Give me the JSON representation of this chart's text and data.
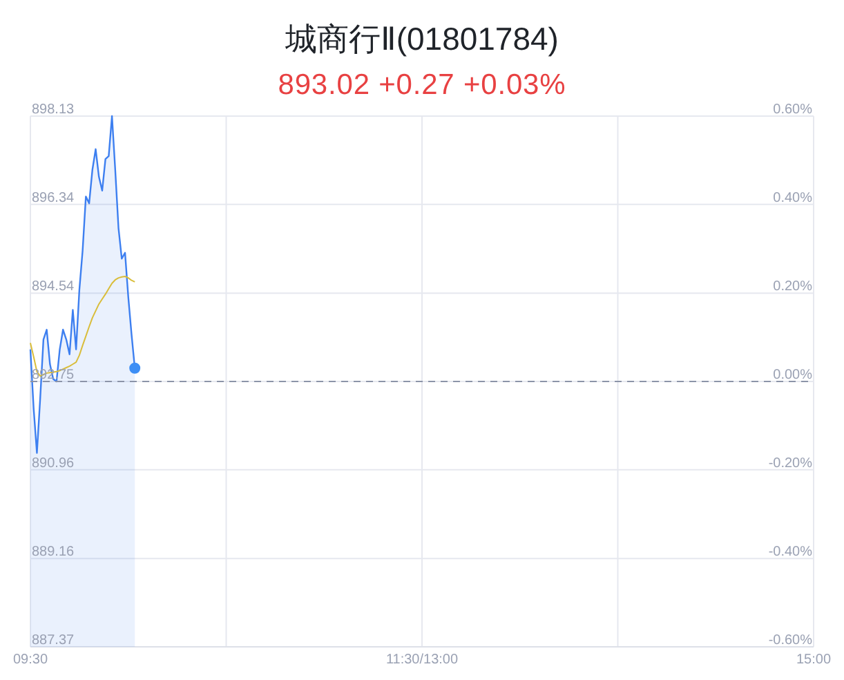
{
  "chart_data": {
    "type": "area",
    "title": "城商行Ⅱ(01801784)",
    "subtitle": "893.02 +0.27 +0.03%",
    "categories": [
      "09:30",
      null,
      null,
      null,
      null,
      null,
      null,
      null,
      null,
      null,
      null,
      null,
      null,
      null,
      null,
      null,
      null,
      null,
      null,
      null,
      null,
      null,
      null,
      null,
      null,
      null,
      null,
      null,
      null,
      null,
      null,
      null,
      null,
      null,
      null,
      null,
      null,
      null,
      null,
      null,
      null,
      null,
      null,
      null,
      null,
      null,
      null,
      null,
      null,
      null,
      null,
      null,
      null,
      null,
      null,
      null,
      null,
      null,
      null,
      null,
      null,
      null,
      null,
      null,
      null,
      null,
      null,
      null,
      null,
      null,
      null,
      null,
      null,
      null,
      null,
      null,
      null,
      null,
      null,
      null,
      null,
      null,
      null,
      null,
      null,
      null,
      null,
      null,
      null,
      null,
      null,
      null,
      null,
      null,
      null,
      null,
      null,
      null,
      null,
      null,
      null,
      null,
      null,
      null,
      null,
      null,
      null,
      null,
      null,
      null,
      null,
      null,
      null,
      null,
      null,
      null,
      null,
      null,
      null,
      null,
      "11:30/13:00",
      null,
      null,
      null,
      null,
      null,
      null,
      null,
      null,
      null,
      null,
      null,
      null,
      null,
      null,
      null,
      null,
      null,
      null,
      null,
      null,
      null,
      null,
      null,
      null,
      null,
      null,
      null,
      null,
      null,
      null,
      null,
      null,
      null,
      null,
      null,
      null,
      null,
      null,
      null,
      null,
      null,
      null,
      null,
      null,
      null,
      null,
      null,
      null,
      null,
      null,
      null,
      null,
      null,
      null,
      null,
      null,
      null,
      null,
      null,
      null,
      null,
      null,
      null,
      null,
      null,
      null,
      null,
      null,
      null,
      null,
      null,
      null,
      null,
      null,
      null,
      null,
      null,
      null,
      null,
      null,
      null,
      null,
      null,
      null,
      null,
      null,
      null,
      null,
      null,
      null,
      null,
      null,
      null,
      null,
      null,
      null,
      null,
      null,
      null,
      null,
      null,
      null,
      null,
      null,
      null,
      null,
      null,
      null,
      null,
      null,
      null,
      null,
      null,
      null,
      null,
      null,
      null,
      null,
      null,
      "15:00"
    ],
    "series": [
      {
        "color": "#3d7ff0",
        "values": [
          893.4,
          892.2,
          891.3,
          892.4,
          893.6,
          893.8,
          893.1,
          892.8,
          892.75,
          893.4,
          893.8,
          893.6,
          893.3,
          894.2,
          893.4,
          894.6,
          895.4,
          896.5,
          896.36,
          897.04,
          897.46,
          896.9,
          896.62,
          897.26,
          897.32,
          898.13,
          897.04,
          895.86,
          895.24,
          895.36,
          894.46,
          893.7,
          893.02,
          null,
          null,
          null,
          null,
          null,
          null,
          null,
          null,
          null,
          null,
          null,
          null,
          null,
          null,
          null,
          null,
          null,
          null,
          null,
          null,
          null,
          null,
          null,
          null,
          null,
          null,
          null,
          null,
          null,
          null,
          null,
          null,
          null,
          null,
          null,
          null,
          null,
          null,
          null,
          null,
          null,
          null,
          null,
          null,
          null,
          null,
          null,
          null,
          null,
          null,
          null,
          null,
          null,
          null,
          null,
          null,
          null,
          null,
          null,
          null,
          null,
          null,
          null,
          null,
          null,
          null,
          null,
          null,
          null,
          null,
          null,
          null,
          null,
          null,
          null,
          null,
          null,
          null,
          null,
          null,
          null,
          null,
          null,
          null,
          null,
          null,
          null,
          null,
          null,
          null,
          null,
          null,
          null,
          null,
          null,
          null,
          null,
          null,
          null,
          null,
          null,
          null,
          null,
          null,
          null,
          null,
          null,
          null,
          null,
          null,
          null,
          null,
          null,
          null,
          null,
          null,
          null,
          null,
          null,
          null,
          null,
          null,
          null,
          null,
          null,
          null,
          null,
          null,
          null,
          null,
          null,
          null,
          null,
          null,
          null,
          null,
          null,
          null,
          null,
          null,
          null,
          null,
          null,
          null,
          null,
          null,
          null,
          null,
          null,
          null,
          null,
          null,
          null,
          null,
          null,
          null,
          null,
          null,
          null,
          null,
          null,
          null,
          null,
          null,
          null,
          null,
          null,
          null,
          null,
          null,
          null,
          null,
          null,
          null,
          null,
          null,
          null,
          null,
          null,
          null,
          null,
          null,
          null,
          null,
          null,
          null,
          null,
          null,
          null,
          null,
          null,
          null,
          null,
          null,
          null,
          null,
          null,
          null,
          null,
          null,
          null,
          null,
          null,
          null,
          null,
          null,
          null,
          null
        ]
      },
      {
        "type": "line",
        "color": "#d9bd3a",
        "values": [
          893.53,
          893.25,
          892.95,
          892.86,
          892.89,
          892.92,
          892.93,
          892.94,
          892.95,
          892.97,
          893.0,
          893.03,
          893.06,
          893.1,
          893.14,
          893.28,
          893.48,
          893.67,
          893.86,
          894.04,
          894.18,
          894.32,
          894.42,
          894.52,
          894.63,
          894.74,
          894.81,
          894.85,
          894.87,
          894.88,
          894.85,
          894.8,
          894.77,
          null,
          null,
          null,
          null,
          null,
          null,
          null,
          null,
          null,
          null,
          null,
          null,
          null,
          null,
          null,
          null,
          null,
          null,
          null,
          null,
          null,
          null,
          null,
          null,
          null,
          null,
          null,
          null,
          null,
          null,
          null,
          null,
          null,
          null,
          null,
          null,
          null,
          null,
          null,
          null,
          null,
          null,
          null,
          null,
          null,
          null,
          null,
          null,
          null,
          null,
          null,
          null,
          null,
          null,
          null,
          null,
          null,
          null,
          null,
          null,
          null,
          null,
          null,
          null,
          null,
          null,
          null,
          null,
          null,
          null,
          null,
          null,
          null,
          null,
          null,
          null,
          null,
          null,
          null,
          null,
          null,
          null,
          null,
          null,
          null,
          null,
          null,
          null,
          null,
          null,
          null,
          null,
          null,
          null,
          null,
          null,
          null,
          null,
          null,
          null,
          null,
          null,
          null,
          null,
          null,
          null,
          null,
          null,
          null,
          null,
          null,
          null,
          null,
          null,
          null,
          null,
          null,
          null,
          null,
          null,
          null,
          null,
          null,
          null,
          null,
          null,
          null,
          null,
          null,
          null,
          null,
          null,
          null,
          null,
          null,
          null,
          null,
          null,
          null,
          null,
          null,
          null,
          null,
          null,
          null,
          null,
          null,
          null,
          null,
          null,
          null,
          null,
          null,
          null,
          null,
          null,
          null,
          null,
          null,
          null,
          null,
          null,
          null,
          null,
          null,
          null,
          null,
          null,
          null,
          null,
          null,
          null,
          null,
          null,
          null,
          null,
          null,
          null,
          null,
          null,
          null,
          null,
          null,
          null,
          null,
          null,
          null,
          null,
          null,
          null,
          null,
          null,
          null,
          null,
          null,
          null,
          null,
          null,
          null,
          null,
          null,
          null,
          null,
          null,
          null,
          null,
          null,
          null
        ]
      },
      {
        "type": "scatter",
        "color": "#3d8ef5",
        "marker": "circle",
        "values": [
          null,
          null,
          null,
          null,
          null,
          null,
          null,
          null,
          null,
          null,
          null,
          null,
          null,
          null,
          null,
          null,
          null,
          null,
          null,
          null,
          null,
          null,
          null,
          null,
          null,
          null,
          null,
          null,
          null,
          null,
          null,
          null,
          893.02,
          null,
          null,
          null,
          null,
          null,
          null,
          null,
          null,
          null,
          null,
          null,
          null,
          null,
          null,
          null,
          null,
          null,
          null,
          null,
          null,
          null,
          null,
          null,
          null,
          null,
          null,
          null,
          null,
          null,
          null,
          null,
          null,
          null,
          null,
          null,
          null,
          null,
          null,
          null,
          null,
          null,
          null,
          null,
          null,
          null,
          null,
          null,
          null,
          null,
          null,
          null,
          null,
          null,
          null,
          null,
          null,
          null,
          null,
          null,
          null,
          null,
          null,
          null,
          null,
          null,
          null,
          null,
          null,
          null,
          null,
          null,
          null,
          null,
          null,
          null,
          null,
          null,
          null,
          null,
          null,
          null,
          null,
          null,
          null,
          null,
          null,
          null,
          null,
          null,
          null,
          null,
          null,
          null,
          null,
          null,
          null,
          null,
          null,
          null,
          null,
          null,
          null,
          null,
          null,
          null,
          null,
          null,
          null,
          null,
          null,
          null,
          null,
          null,
          null,
          null,
          null,
          null,
          null,
          null,
          null,
          null,
          null,
          null,
          null,
          null,
          null,
          null,
          null,
          null,
          null,
          null,
          null,
          null,
          null,
          null,
          null,
          null,
          null,
          null,
          null,
          null,
          null,
          null,
          null,
          null,
          null,
          null,
          null,
          null,
          null,
          null,
          null,
          null,
          null,
          null,
          null,
          null,
          null,
          null,
          null,
          null,
          null,
          null,
          null,
          null,
          null,
          null,
          null,
          null,
          null,
          null,
          null,
          null,
          null,
          null,
          null,
          null,
          null,
          null,
          null,
          null,
          null,
          null,
          null,
          null,
          null,
          null,
          null,
          null,
          null,
          null,
          null,
          null,
          null,
          null,
          null,
          null,
          null,
          null,
          null,
          null,
          null,
          null,
          null,
          null,
          null,
          null,
          null
        ]
      }
    ],
    "ylim": [
      887.37,
      898.13
    ],
    "yticks": [
      887.37,
      889.16,
      890.96,
      892.75,
      894.54,
      896.34,
      898.13
    ],
    "y2lim": [
      -0.6,
      0.6
    ],
    "y2ticks": [
      {
        "value": -0.6,
        "label": "-0.60%"
      },
      {
        "value": -0.4,
        "label": "-0.40%"
      },
      {
        "value": -0.2,
        "label": "-0.20%"
      },
      {
        "value": 0,
        "label": "0.00%"
      },
      {
        "value": 0.2,
        "label": "0.20%"
      },
      {
        "value": 0.4,
        "label": "0.40%"
      },
      {
        "value": 0.6,
        "label": "0.60%"
      }
    ],
    "ref_lines": [
      {
        "axis": "y",
        "value": 892.75,
        "color": "#8c94a8",
        "line_style": "dashed"
      }
    ],
    "grid": true
  }
}
